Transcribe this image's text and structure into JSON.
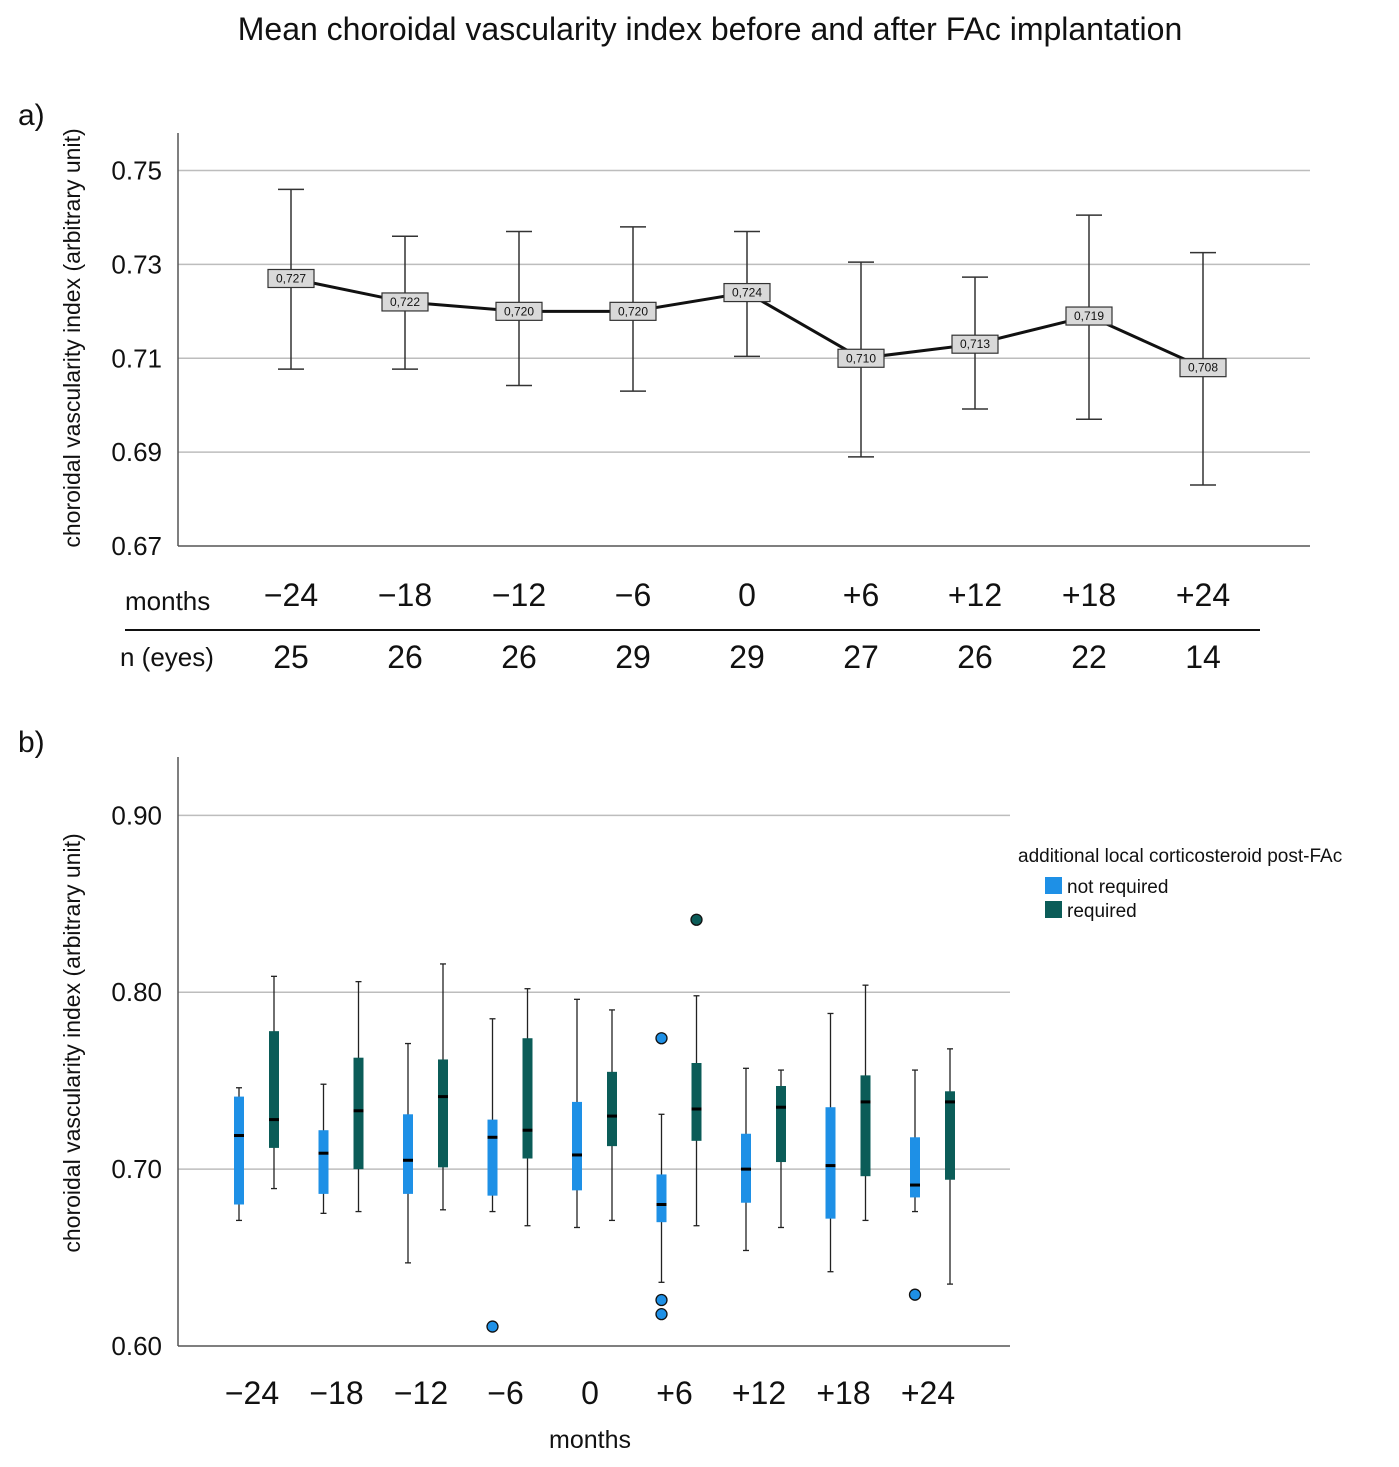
{
  "figure_title": "Mean choroidal vascularity index before and after FAc implantation",
  "colors": {
    "not_required": "#1e90e6",
    "required": "#0b5c58",
    "grid": "#bdbdbd",
    "axis": "#555555",
    "label_box": "#d9d9d9"
  },
  "chart_data": [
    {
      "type": "line",
      "panel_label": "a)",
      "ylabel": "choroidal vascularity index (arbitrary unit)",
      "ylim": [
        0.67,
        0.758
      ],
      "yticks": [
        0.67,
        0.69,
        0.71,
        0.73,
        0.75
      ],
      "ytick_labels": [
        "0.67",
        "0.69",
        "0.71",
        "0.73",
        "0.75"
      ],
      "categories": [
        "−24",
        "−18",
        "−12",
        "−6",
        "0",
        "+6",
        "+12",
        "+18",
        "+24"
      ],
      "means": [
        0.727,
        0.722,
        0.72,
        0.72,
        0.724,
        0.71,
        0.713,
        0.719,
        0.708
      ],
      "mean_labels": [
        "0,727",
        "0,722",
        "0,720",
        "0,720",
        "0,724",
        "0,710",
        "0,713",
        "0,719",
        "0,708"
      ],
      "ci_upper": [
        0.746,
        0.736,
        0.737,
        0.738,
        0.737,
        0.7305,
        0.7273,
        0.7405,
        0.7325
      ],
      "ci_lower": [
        0.7077,
        0.7077,
        0.7042,
        0.703,
        0.7104,
        0.689,
        0.6992,
        0.697,
        0.683
      ],
      "table": {
        "row1_label": "months",
        "row2_label": "n (eyes)",
        "n_eyes": [
          "25",
          "26",
          "26",
          "29",
          "29",
          "27",
          "26",
          "22",
          "14"
        ]
      }
    },
    {
      "type": "box",
      "panel_label": "b)",
      "ylabel": "choroidal vascularity index (arbitrary unit)",
      "xlabel": "months",
      "ylim": [
        0.6,
        0.933
      ],
      "yticks": [
        0.6,
        0.7,
        0.8,
        0.9
      ],
      "ytick_labels": [
        "0.60",
        "0.70",
        "0.80",
        "0.90"
      ],
      "categories": [
        "−24",
        "−18",
        "−12",
        "−6",
        "0",
        "+6",
        "+12",
        "+18",
        "+24"
      ],
      "legend": {
        "title": "additional local corticosteroid post-FAc",
        "position": "right",
        "items": [
          "not required",
          "required"
        ]
      },
      "series": [
        {
          "name": "not required",
          "whisker_low": [
            0.671,
            0.675,
            0.647,
            0.676,
            0.667,
            0.636,
            0.654,
            0.642,
            0.676
          ],
          "q1": [
            0.68,
            0.686,
            0.686,
            0.685,
            0.688,
            0.67,
            0.681,
            0.672,
            0.684
          ],
          "median": [
            0.719,
            0.709,
            0.705,
            0.718,
            0.708,
            0.68,
            0.7,
            0.702,
            0.691
          ],
          "q3": [
            0.741,
            0.722,
            0.731,
            0.728,
            0.738,
            0.697,
            0.72,
            0.735,
            0.718
          ],
          "whisker_high": [
            0.746,
            0.748,
            0.771,
            0.785,
            0.796,
            0.731,
            0.757,
            0.788,
            0.756
          ],
          "outliers": [
            [],
            [],
            [],
            [
              0.611
            ],
            [],
            [
              0.774,
              0.626,
              0.618
            ],
            [],
            [],
            [
              0.629
            ]
          ]
        },
        {
          "name": "required",
          "whisker_low": [
            0.689,
            0.676,
            0.677,
            0.668,
            0.671,
            0.668,
            0.667,
            0.671,
            0.635
          ],
          "q1": [
            0.712,
            0.7,
            0.701,
            0.706,
            0.713,
            0.716,
            0.704,
            0.696,
            0.694
          ],
          "median": [
            0.728,
            0.733,
            0.741,
            0.722,
            0.73,
            0.734,
            0.735,
            0.738,
            0.738
          ],
          "q3": [
            0.778,
            0.763,
            0.762,
            0.774,
            0.755,
            0.76,
            0.747,
            0.753,
            0.744
          ],
          "whisker_high": [
            0.809,
            0.806,
            0.816,
            0.802,
            0.79,
            0.798,
            0.756,
            0.804,
            0.768
          ],
          "outliers": [
            [],
            [],
            [],
            [],
            [],
            [
              0.841
            ],
            [],
            [],
            []
          ]
        }
      ]
    }
  ]
}
